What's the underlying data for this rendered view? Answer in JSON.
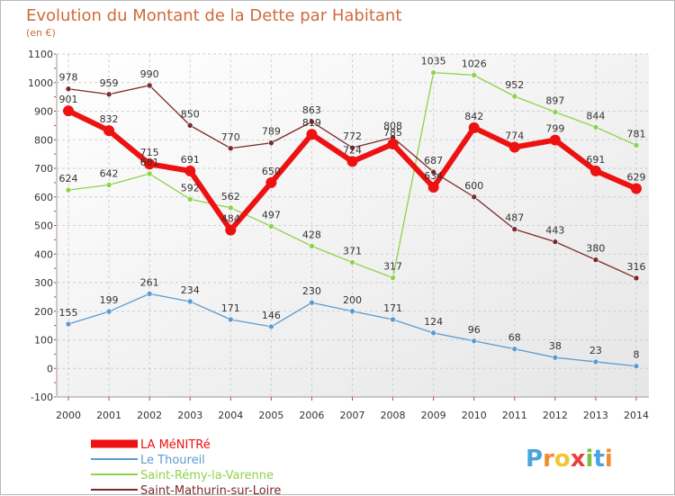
{
  "chart_data": {
    "type": "line",
    "title": "Evolution du Montant de la Dette par Habitant",
    "subtitle": "(en €)",
    "x": [
      2000,
      2001,
      2002,
      2003,
      2004,
      2005,
      2006,
      2007,
      2008,
      2009,
      2010,
      2011,
      2012,
      2013,
      2014
    ],
    "ylim": [
      -100,
      1100
    ],
    "yticks": [
      -100,
      0,
      100,
      200,
      300,
      400,
      500,
      600,
      700,
      800,
      900,
      1000,
      1100
    ],
    "grid": true,
    "legend_position": "bottom-left",
    "series": [
      {
        "name": "LA MéNITRé",
        "color": "#ee1111",
        "values": [
          901,
          832,
          715,
          691,
          484,
          650,
          819,
          724,
          785,
          634,
          842,
          774,
          799,
          691,
          629
        ]
      },
      {
        "name": "Le Thoureil",
        "color": "#5b9bd0",
        "values": [
          155,
          199,
          261,
          234,
          171,
          146,
          230,
          200,
          171,
          124,
          96,
          68,
          38,
          23,
          8
        ]
      },
      {
        "name": "Saint-Rémy-la-Varenne",
        "color": "#8fd24a",
        "values": [
          624,
          642,
          681,
          592,
          562,
          497,
          428,
          371,
          317,
          1035,
          1026,
          952,
          897,
          844,
          781
        ]
      },
      {
        "name": "Saint-Mathurin-sur-Loire",
        "color": "#7a2a2a",
        "values": [
          978,
          959,
          990,
          850,
          770,
          789,
          863,
          772,
          808,
          687,
          600,
          487,
          443,
          380,
          316
        ]
      }
    ]
  },
  "logo": {
    "text": "Proxiti",
    "letters": [
      "P",
      "r",
      "o",
      "x",
      "i",
      "t",
      "i"
    ]
  }
}
